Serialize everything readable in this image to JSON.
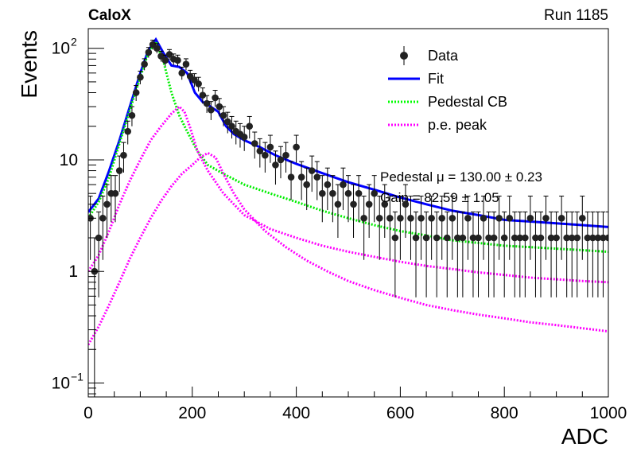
{
  "header": {
    "experiment_label": "CaloX",
    "run_label": "Run 1185"
  },
  "legend": {
    "entries": [
      {
        "label": "Data",
        "style": "points",
        "color": "#000000"
      },
      {
        "label": "Fit",
        "style": "solid",
        "color": "#0000ff"
      },
      {
        "label": "Pedestal CB",
        "style": "dotted",
        "color": "#00ff00"
      },
      {
        "label": "p.e. peak",
        "style": "dotted",
        "color": "#ff00ff"
      }
    ]
  },
  "fit_info": {
    "line1": "Pedestal μ = 130.00 ± 0.23",
    "line2": "Gain = 82.59 ± 1.05"
  },
  "chart_data": {
    "type": "scatter",
    "xlabel": "ADC",
    "ylabel": "Events",
    "xlim": [
      0,
      1000
    ],
    "ylim": [
      0.075,
      150
    ],
    "log_y": true,
    "x_ticks": [
      0,
      200,
      400,
      600,
      800,
      1000
    ],
    "y_ticks": [
      {
        "value": 0.1,
        "label": "10",
        "exp": "−1"
      },
      {
        "value": 1,
        "label": "1",
        "exp": ""
      },
      {
        "value": 10,
        "label": "10",
        "exp": ""
      },
      {
        "value": 100,
        "label": "10",
        "exp": "2"
      }
    ],
    "series": [
      {
        "name": "Data",
        "type": "points",
        "color": "#000000",
        "points": [
          [
            4,
            3
          ],
          [
            12,
            1
          ],
          [
            20,
            2
          ],
          [
            28,
            3
          ],
          [
            36,
            4
          ],
          [
            44,
            5
          ],
          [
            52,
            5
          ],
          [
            60,
            8
          ],
          [
            68,
            11
          ],
          [
            76,
            18
          ],
          [
            84,
            25
          ],
          [
            92,
            40
          ],
          [
            100,
            55
          ],
          [
            108,
            72
          ],
          [
            116,
            92
          ],
          [
            124,
            108
          ],
          [
            132,
            100
          ],
          [
            140,
            85
          ],
          [
            148,
            78
          ],
          [
            156,
            88
          ],
          [
            164,
            80
          ],
          [
            172,
            78
          ],
          [
            180,
            60
          ],
          [
            188,
            72
          ],
          [
            196,
            56
          ],
          [
            204,
            52
          ],
          [
            212,
            48
          ],
          [
            220,
            38
          ],
          [
            228,
            32
          ],
          [
            236,
            28
          ],
          [
            244,
            36
          ],
          [
            252,
            30
          ],
          [
            260,
            25
          ],
          [
            268,
            22
          ],
          [
            276,
            20
          ],
          [
            284,
            18
          ],
          [
            292,
            17
          ],
          [
            300,
            16
          ],
          [
            310,
            20
          ],
          [
            320,
            14
          ],
          [
            330,
            12
          ],
          [
            340,
            11
          ],
          [
            350,
            13
          ],
          [
            360,
            9
          ],
          [
            370,
            10
          ],
          [
            380,
            11
          ],
          [
            390,
            7
          ],
          [
            400,
            13
          ],
          [
            410,
            7
          ],
          [
            420,
            6
          ],
          [
            430,
            8
          ],
          [
            440,
            7
          ],
          [
            450,
            5
          ],
          [
            460,
            6
          ],
          [
            470,
            5
          ],
          [
            480,
            4
          ],
          [
            490,
            6
          ],
          [
            500,
            5
          ],
          [
            510,
            4
          ],
          [
            520,
            5
          ],
          [
            530,
            3
          ],
          [
            540,
            4
          ],
          [
            550,
            5
          ],
          [
            560,
            3
          ],
          [
            570,
            4
          ],
          [
            580,
            3
          ],
          [
            590,
            2
          ],
          [
            600,
            3
          ],
          [
            610,
            4
          ],
          [
            620,
            3
          ],
          [
            630,
            2
          ],
          [
            640,
            3
          ],
          [
            650,
            2
          ],
          [
            660,
            3
          ],
          [
            670,
            2
          ],
          [
            680,
            3
          ],
          [
            690,
            2
          ],
          [
            700,
            3
          ],
          [
            710,
            2
          ],
          [
            720,
            2
          ],
          [
            730,
            3
          ],
          [
            740,
            2
          ],
          [
            750,
            2
          ],
          [
            760,
            3
          ],
          [
            770,
            2
          ],
          [
            780,
            2
          ],
          [
            790,
            3
          ],
          [
            800,
            2
          ],
          [
            810,
            3
          ],
          [
            820,
            2
          ],
          [
            830,
            2
          ],
          [
            840,
            2
          ],
          [
            850,
            3
          ],
          [
            860,
            2
          ],
          [
            870,
            2
          ],
          [
            880,
            3
          ],
          [
            890,
            2
          ],
          [
            900,
            2
          ],
          [
            910,
            3
          ],
          [
            920,
            2
          ],
          [
            930,
            2
          ],
          [
            940,
            2
          ],
          [
            950,
            3
          ],
          [
            960,
            2
          ],
          [
            970,
            2
          ],
          [
            980,
            2
          ],
          [
            990,
            2
          ],
          [
            1000,
            2
          ]
        ]
      },
      {
        "name": "Fit",
        "type": "line",
        "color": "#0000ff",
        "dash": "solid",
        "points": [
          [
            0,
            3.4
          ],
          [
            20,
            4.5
          ],
          [
            40,
            8
          ],
          [
            60,
            15
          ],
          [
            80,
            30
          ],
          [
            100,
            60
          ],
          [
            115,
            95
          ],
          [
            130,
            120
          ],
          [
            145,
            90
          ],
          [
            160,
            70
          ],
          [
            175,
            68
          ],
          [
            190,
            60
          ],
          [
            205,
            40
          ],
          [
            220,
            33
          ],
          [
            235,
            30
          ],
          [
            250,
            27
          ],
          [
            265,
            20
          ],
          [
            280,
            17
          ],
          [
            300,
            15
          ],
          [
            330,
            13
          ],
          [
            360,
            11
          ],
          [
            400,
            9.2
          ],
          [
            450,
            7.6
          ],
          [
            500,
            6.3
          ],
          [
            550,
            5.4
          ],
          [
            600,
            4.6
          ],
          [
            650,
            4.0
          ],
          [
            700,
            3.5
          ],
          [
            750,
            3.2
          ],
          [
            800,
            2.9
          ],
          [
            850,
            2.8
          ],
          [
            900,
            2.7
          ],
          [
            950,
            2.6
          ],
          [
            1000,
            2.5
          ]
        ]
      },
      {
        "name": "Pedestal CB",
        "type": "line",
        "color": "#00ee00",
        "dash": "dotted",
        "points": [
          [
            0,
            3.0
          ],
          [
            20,
            4.2
          ],
          [
            40,
            7
          ],
          [
            60,
            14
          ],
          [
            80,
            28
          ],
          [
            100,
            55
          ],
          [
            115,
            90
          ],
          [
            130,
            115
          ],
          [
            145,
            75
          ],
          [
            160,
            40
          ],
          [
            175,
            25
          ],
          [
            190,
            18
          ],
          [
            210,
            12
          ],
          [
            230,
            9
          ],
          [
            260,
            7.5
          ],
          [
            300,
            6.0
          ],
          [
            350,
            5.0
          ],
          [
            400,
            4.2
          ],
          [
            450,
            3.5
          ],
          [
            500,
            3.0
          ],
          [
            550,
            2.6
          ],
          [
            600,
            2.3
          ],
          [
            650,
            2.1
          ],
          [
            700,
            1.9
          ],
          [
            750,
            1.8
          ],
          [
            800,
            1.7
          ],
          [
            850,
            1.65
          ],
          [
            900,
            1.6
          ],
          [
            950,
            1.55
          ],
          [
            1000,
            1.5
          ]
        ]
      },
      {
        "name": "p.e. peak",
        "type": "line",
        "color": "#ff00ff",
        "dash": "dotted",
        "points": [
          [
            0,
            1.0
          ],
          [
            20,
            1.4
          ],
          [
            40,
            2.3
          ],
          [
            60,
            4
          ],
          [
            80,
            6.5
          ],
          [
            100,
            10
          ],
          [
            120,
            15
          ],
          [
            140,
            20
          ],
          [
            160,
            26
          ],
          [
            175,
            30
          ],
          [
            185,
            27
          ],
          [
            195,
            20
          ],
          [
            210,
            12
          ],
          [
            230,
            8
          ],
          [
            260,
            5
          ],
          [
            300,
            3.2
          ],
          [
            350,
            2.4
          ],
          [
            400,
            2.0
          ],
          [
            450,
            1.7
          ],
          [
            500,
            1.5
          ],
          [
            550,
            1.35
          ],
          [
            600,
            1.22
          ],
          [
            650,
            1.12
          ],
          [
            700,
            1.05
          ],
          [
            750,
            0.98
          ],
          [
            800,
            0.93
          ],
          [
            850,
            0.88
          ],
          [
            900,
            0.85
          ],
          [
            950,
            0.82
          ],
          [
            1000,
            0.8
          ]
        ]
      },
      {
        "name": "p.e. peak",
        "type": "line",
        "color": "#ff00ff",
        "dash": "dotted",
        "points": [
          [
            0,
            0.22
          ],
          [
            20,
            0.32
          ],
          [
            40,
            0.5
          ],
          [
            60,
            0.8
          ],
          [
            80,
            1.3
          ],
          [
            100,
            2.0
          ],
          [
            120,
            3.0
          ],
          [
            140,
            4.3
          ],
          [
            160,
            5.8
          ],
          [
            180,
            7.5
          ],
          [
            200,
            9.0
          ],
          [
            215,
            10.5
          ],
          [
            230,
            11.5
          ],
          [
            245,
            10.5
          ],
          [
            260,
            7.5
          ],
          [
            280,
            5.0
          ],
          [
            300,
            3.6
          ],
          [
            340,
            2.3
          ],
          [
            380,
            1.65
          ],
          [
            420,
            1.25
          ],
          [
            460,
            1.0
          ],
          [
            500,
            0.82
          ],
          [
            550,
            0.68
          ],
          [
            600,
            0.58
          ],
          [
            650,
            0.5
          ],
          [
            700,
            0.45
          ],
          [
            750,
            0.41
          ],
          [
            800,
            0.38
          ],
          [
            850,
            0.35
          ],
          [
            900,
            0.33
          ],
          [
            950,
            0.31
          ],
          [
            1000,
            0.29
          ]
        ]
      }
    ]
  }
}
